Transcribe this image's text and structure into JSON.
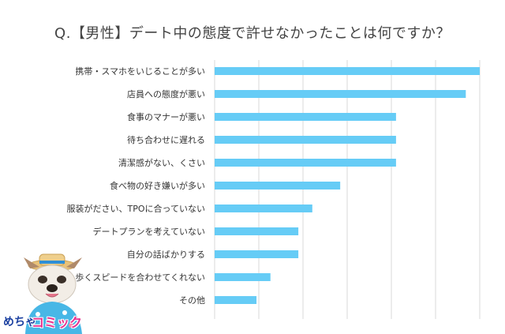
{
  "chart_data": {
    "type": "bar",
    "orientation": "horizontal",
    "title": "Q.【男性】デート中の態度で許せなかったことは何ですか？",
    "categories": [
      "携帯・スマホをいじることが多い",
      "店員への態度が悪い",
      "食事のマナーが悪い",
      "待ち合わせに遅れる",
      "清潔感がない、くさい",
      "食べ物の好き嫌いが多い",
      "服装がださい、TPOに合っていない",
      "デートプランを考えていない",
      "自分の話ばかりする",
      "歩くスピードを合わせてくれない",
      "その他"
    ],
    "values": [
      19.0,
      18.0,
      13.0,
      13.0,
      13.0,
      9.0,
      7.0,
      6.0,
      6.0,
      4.0,
      3.0
    ],
    "xlim": [
      0,
      19
    ],
    "grid": true,
    "bar_color": "#66ccf6"
  },
  "brand": {
    "text_1": "めちゃ",
    "text_2": "コミック"
  }
}
